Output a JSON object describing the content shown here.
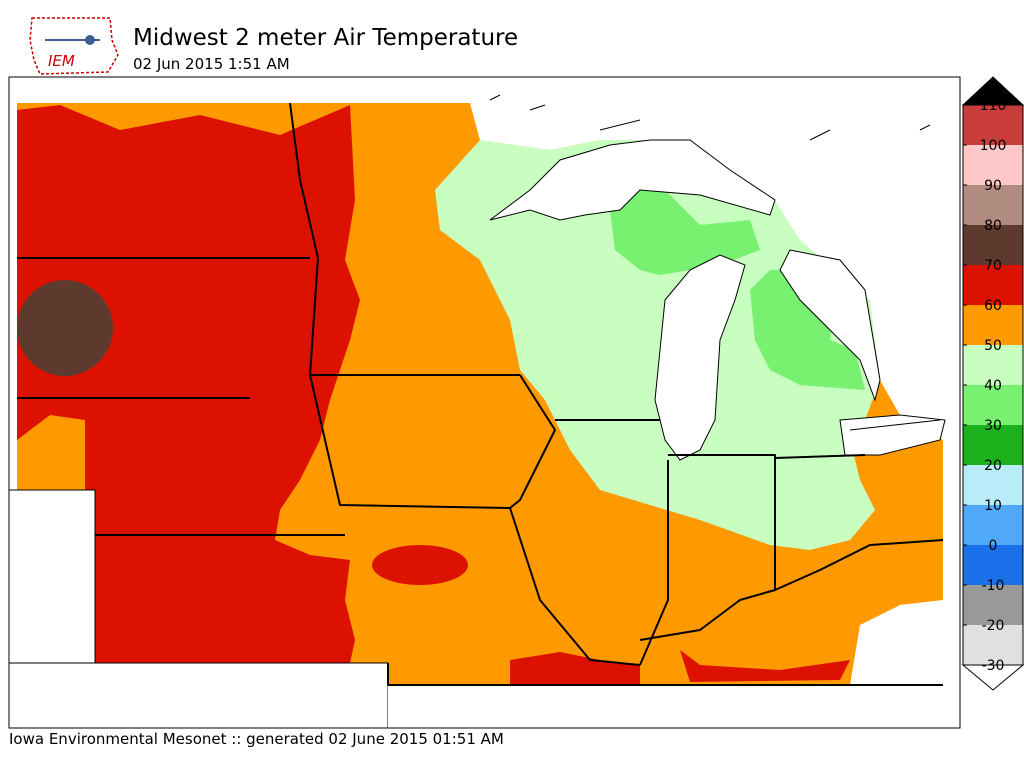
{
  "header": {
    "title": "Midwest 2 meter Air Temperature",
    "subtitle": "02 Jun 2015 1:51 AM"
  },
  "logo": {
    "text": "IEM"
  },
  "footer": "Iowa Environmental Mesonet :: generated 02 June 2015 01:51 AM",
  "colorbar": {
    "ticks": [
      -30,
      -20,
      -10,
      0,
      10,
      20,
      30,
      40,
      50,
      60,
      70,
      80,
      90,
      100,
      110
    ],
    "colors": [
      "#e0e0e0",
      "#999999",
      "#1a70e8",
      "#50a8f8",
      "#b8ecf8",
      "#1cb01c",
      "#78f070",
      "#c8ffc0",
      "#ff9900",
      "#dd1100",
      "#5e3a2e",
      "#b08c80",
      "#ffc8c8",
      "#c83c3c"
    ],
    "over_color": "#000000",
    "under_color": "#ffffff"
  }
}
